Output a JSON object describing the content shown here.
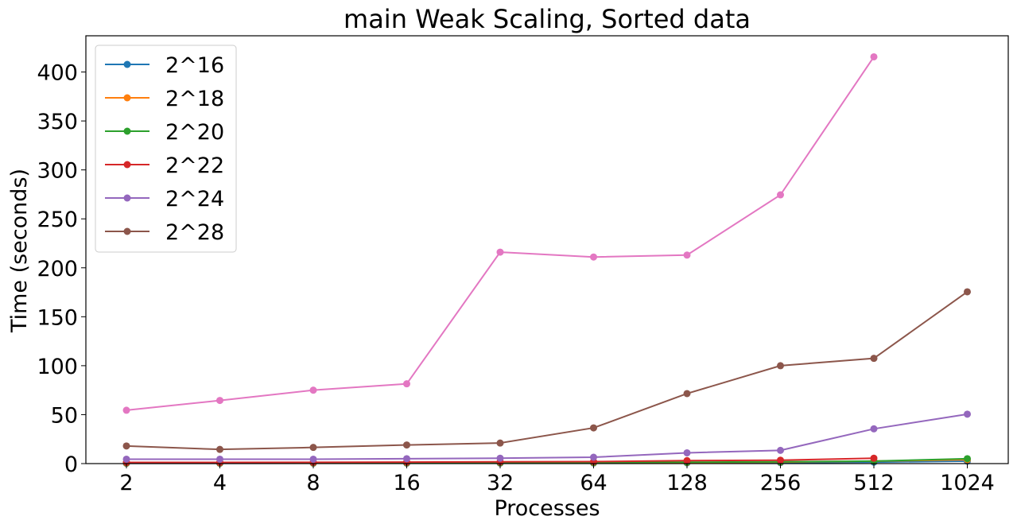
{
  "chart_data": {
    "type": "line",
    "title": "main Weak Scaling, Sorted data",
    "xlabel": "Processes",
    "ylabel": "Time (seconds)",
    "categories": [
      "2",
      "4",
      "8",
      "16",
      "32",
      "64",
      "128",
      "256",
      "512",
      "1024"
    ],
    "ylim": [
      0,
      437
    ],
    "yticks": [
      0,
      50,
      100,
      150,
      200,
      250,
      300,
      350,
      400
    ],
    "grid": false,
    "legend_position": "top-left",
    "series": [
      {
        "name": "2^16",
        "color": "#1f77b4",
        "values": [
          0.3,
          0.3,
          0.4,
          0.4,
          0.5,
          0.6,
          0.8,
          1.0,
          1.5,
          2.5
        ]
      },
      {
        "name": "2^18",
        "color": "#ff7f0e",
        "values": [
          0.5,
          0.5,
          0.6,
          0.7,
          0.8,
          0.9,
          1.2,
          1.5,
          2.5,
          4.0
        ]
      },
      {
        "name": "2^20",
        "color": "#2ca02c",
        "values": [
          0.8,
          0.8,
          0.9,
          1.0,
          1.1,
          1.2,
          1.5,
          1.8,
          2.5,
          5.0
        ]
      },
      {
        "name": "2^22",
        "color": "#d62728",
        "values": [
          1.2,
          1.2,
          1.3,
          1.5,
          1.8,
          2.0,
          3.0,
          3.5,
          5.5,
          null
        ]
      },
      {
        "name": "2^24",
        "color": "#9467bd",
        "values": [
          4.5,
          4.5,
          4.5,
          5.0,
          5.5,
          6.5,
          11.0,
          13.5,
          35.5,
          50.5
        ]
      },
      {
        "name": "2^28",
        "color": "#8c564b",
        "values": [
          18.0,
          14.5,
          16.5,
          19.0,
          21.0,
          36.5,
          71.5,
          100.0,
          107.5,
          175.5
        ]
      },
      {
        "name": "",
        "color": "#e377c2",
        "values": [
          54.5,
          64.5,
          75.0,
          81.5,
          216.0,
          211.0,
          213.0,
          274.5,
          415.5,
          null
        ]
      }
    ]
  }
}
